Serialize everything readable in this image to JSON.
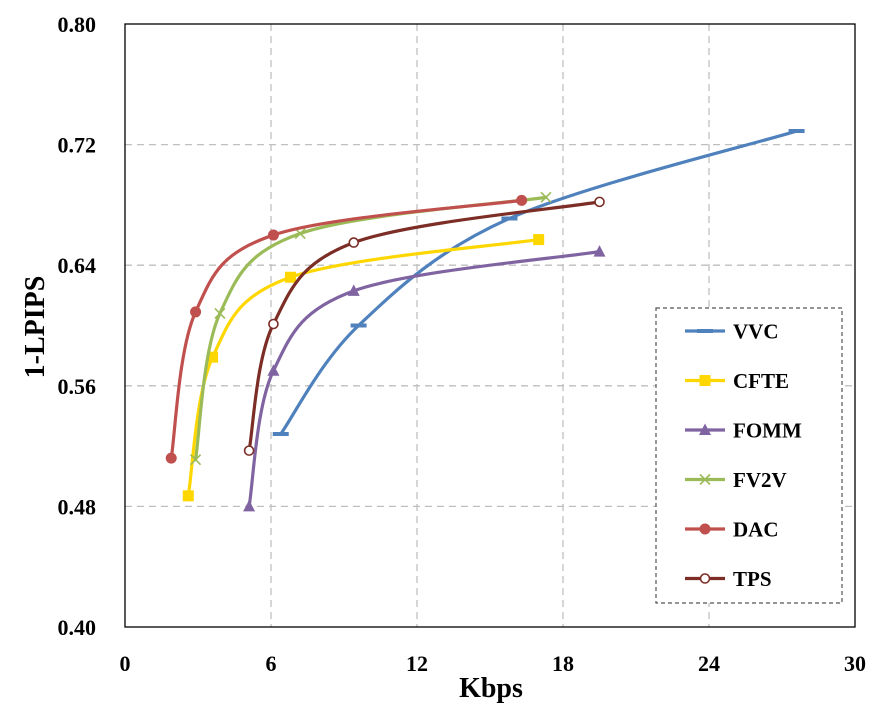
{
  "chart_data": {
    "type": "line",
    "title": "",
    "xlabel": "Kbps",
    "ylabel": "1-LPIPS",
    "xlim": [
      0,
      30
    ],
    "ylim": [
      0.4,
      0.8
    ],
    "xticks": [
      0,
      6,
      12,
      18,
      24,
      30
    ],
    "yticks": [
      0.4,
      0.48,
      0.56,
      0.64,
      0.72,
      0.8
    ],
    "xtick_labels": [
      "0",
      "6",
      "12",
      "18",
      "24",
      "30"
    ],
    "ytick_labels": [
      "0.40",
      "0.48",
      "0.56",
      "0.64",
      "0.72",
      "0.80"
    ],
    "grid": true,
    "legend_position": "lower-right",
    "series": [
      {
        "name": "VVC",
        "marker": "dash",
        "color": "#4f81bd",
        "points": [
          [
            6.4,
            0.528
          ],
          [
            9.6,
            0.6
          ],
          [
            15.8,
            0.671
          ],
          [
            27.6,
            0.729
          ]
        ]
      },
      {
        "name": "CFTE",
        "marker": "square",
        "color": "#ffd700",
        "points": [
          [
            2.6,
            0.487
          ],
          [
            3.6,
            0.579
          ],
          [
            6.8,
            0.632
          ],
          [
            17.0,
            0.657
          ]
        ]
      },
      {
        "name": "FOMM",
        "marker": "triangle",
        "color": "#8064a2",
        "points": [
          [
            5.1,
            0.48
          ],
          [
            6.1,
            0.57
          ],
          [
            9.4,
            0.623
          ],
          [
            19.5,
            0.649
          ]
        ]
      },
      {
        "name": "FV2V",
        "marker": "x",
        "color": "#9bbb59",
        "points": [
          [
            2.9,
            0.511
          ],
          [
            3.9,
            0.608
          ],
          [
            7.2,
            0.661
          ],
          [
            17.3,
            0.685
          ]
        ]
      },
      {
        "name": "DAC",
        "marker": "circle",
        "color": "#c0504d",
        "points": [
          [
            1.9,
            0.512
          ],
          [
            2.9,
            0.609
          ],
          [
            6.1,
            0.66
          ],
          [
            16.3,
            0.683
          ]
        ]
      },
      {
        "name": "TPS",
        "marker": "open-circle",
        "color": "#7b2d26",
        "points": [
          [
            5.1,
            0.517
          ],
          [
            6.1,
            0.601
          ],
          [
            9.4,
            0.655
          ],
          [
            19.5,
            0.682
          ]
        ]
      }
    ]
  }
}
